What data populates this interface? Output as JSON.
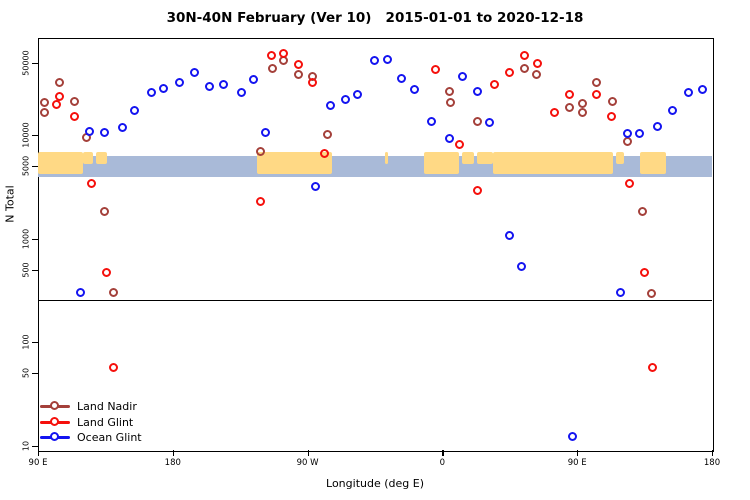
{
  "title": "30N-40N February (Ver 10)   2015-01-01 to 2020-12-18",
  "chart_data": {
    "type": "scatter",
    "title": "30N-40N February (Ver 10)   2015-01-01 to 2020-12-18",
    "xlabel": "Longitude (deg E)",
    "ylabel": "N Total",
    "y_scale": "log10",
    "ylim": [
      10,
      70000
    ],
    "x_axis_ticks": [
      {
        "deg": 90,
        "label": "90 E"
      },
      {
        "deg": 180,
        "label": "180"
      },
      {
        "deg": 270,
        "label": "90 W"
      },
      {
        "deg": 360,
        "label": "0"
      },
      {
        "deg": 450,
        "label": "90 E"
      },
      {
        "deg": 540,
        "label": "180"
      }
    ],
    "y_axis_ticks": [
      {
        "n": 50000,
        "label": "50000"
      },
      {
        "n": 10000,
        "label": "10000"
      },
      {
        "n": 5000,
        "label": "5000"
      },
      {
        "n": 1000,
        "label": "1000"
      },
      {
        "n": 500,
        "label": "500"
      },
      {
        "n": 100,
        "label": "100"
      },
      {
        "n": 50,
        "label": "50"
      },
      {
        "n": 10,
        "label": "10"
      }
    ],
    "ref_line_n": 255,
    "map_strip": {
      "ocean_color": "#A9BAD8",
      "land_color": "#FFD985",
      "land_segments": [
        {
          "from_deg": 90,
          "to_deg": 120,
          "part": "full"
        },
        {
          "from_deg": 120,
          "to_deg": 127,
          "part": "top"
        },
        {
          "from_deg": 129,
          "to_deg": 136,
          "part": "top"
        },
        {
          "from_deg": 236,
          "to_deg": 286,
          "part": "full"
        },
        {
          "from_deg": 322,
          "to_deg": 324,
          "part": "top"
        },
        {
          "from_deg": 348,
          "to_deg": 371,
          "part": "full"
        },
        {
          "from_deg": 373,
          "to_deg": 381,
          "part": "top"
        },
        {
          "from_deg": 383,
          "to_deg": 394,
          "part": "top"
        },
        {
          "from_deg": 394,
          "to_deg": 474,
          "part": "full"
        },
        {
          "from_deg": 476,
          "to_deg": 481,
          "part": "top"
        },
        {
          "from_deg": 492,
          "to_deg": 509,
          "part": "full"
        }
      ]
    },
    "legend": {
      "position": "bottom-left",
      "entries": [
        "Land Nadir",
        "Land Glint",
        "Ocean Glint"
      ]
    },
    "series": [
      {
        "name": "Land Nadir",
        "color": "#A4403A",
        "points": [
          {
            "deg": 95,
            "n": 20400
          },
          {
            "deg": 95,
            "n": 16300
          },
          {
            "deg": 105,
            "n": 31800
          },
          {
            "deg": 115,
            "n": 20800
          },
          {
            "deg": 123,
            "n": 9400
          },
          {
            "deg": 254,
            "n": 51900
          },
          {
            "deg": 247,
            "n": 43400
          },
          {
            "deg": 264,
            "n": 38000
          },
          {
            "deg": 274,
            "n": 36300
          },
          {
            "deg": 239,
            "n": 6850
          },
          {
            "deg": 284,
            "n": 10000
          },
          {
            "deg": 365,
            "n": 26000
          },
          {
            "deg": 366,
            "n": 20400
          },
          {
            "deg": 384,
            "n": 13400
          },
          {
            "deg": 415,
            "n": 43400
          },
          {
            "deg": 423,
            "n": 38000
          },
          {
            "deg": 445,
            "n": 18200
          },
          {
            "deg": 454,
            "n": 19900
          },
          {
            "deg": 454,
            "n": 16300
          },
          {
            "deg": 463,
            "n": 31800
          },
          {
            "deg": 474,
            "n": 20800
          },
          {
            "deg": 484,
            "n": 8550
          },
          {
            "deg": 135,
            "n": 1800
          },
          {
            "deg": 141,
            "n": 297
          },
          {
            "deg": 494,
            "n": 1800
          },
          {
            "deg": 500,
            "n": 291
          }
        ]
      },
      {
        "name": "Land Glint",
        "color": "#F5100C",
        "points": [
          {
            "deg": 103,
            "n": 19500
          },
          {
            "deg": 105,
            "n": 23300
          },
          {
            "deg": 115,
            "n": 14900
          },
          {
            "deg": 246,
            "n": 58000
          },
          {
            "deg": 254,
            "n": 61000
          },
          {
            "deg": 264,
            "n": 47400
          },
          {
            "deg": 274,
            "n": 31800
          },
          {
            "deg": 282,
            "n": 6550
          },
          {
            "deg": 356,
            "n": 42400
          },
          {
            "deg": 395,
            "n": 30400
          },
          {
            "deg": 405,
            "n": 39700
          },
          {
            "deg": 415,
            "n": 58000
          },
          {
            "deg": 424,
            "n": 48500
          },
          {
            "deg": 435,
            "n": 16300
          },
          {
            "deg": 372,
            "n": 8000
          },
          {
            "deg": 445,
            "n": 24300
          },
          {
            "deg": 463,
            "n": 24300
          },
          {
            "deg": 473,
            "n": 14900
          },
          {
            "deg": 126,
            "n": 3360
          },
          {
            "deg": 136,
            "n": 464
          },
          {
            "deg": 239,
            "n": 2250
          },
          {
            "deg": 384,
            "n": 2880
          },
          {
            "deg": 485,
            "n": 3360
          },
          {
            "deg": 495,
            "n": 464
          },
          {
            "deg": 141,
            "n": 56
          },
          {
            "deg": 501,
            "n": 56
          }
        ]
      },
      {
        "name": "Ocean Glint",
        "color": "#1414F0",
        "points": [
          {
            "deg": 125,
            "n": 10700
          },
          {
            "deg": 135,
            "n": 10450
          },
          {
            "deg": 147,
            "n": 11700
          },
          {
            "deg": 155,
            "n": 17100
          },
          {
            "deg": 166,
            "n": 25500
          },
          {
            "deg": 174,
            "n": 27800
          },
          {
            "deg": 185,
            "n": 31800
          },
          {
            "deg": 195,
            "n": 39700
          },
          {
            "deg": 205,
            "n": 29100
          },
          {
            "deg": 214,
            "n": 30400
          },
          {
            "deg": 226,
            "n": 25500
          },
          {
            "deg": 234,
            "n": 34000
          },
          {
            "deg": 242,
            "n": 10450
          },
          {
            "deg": 286,
            "n": 19100
          },
          {
            "deg": 296,
            "n": 21800
          },
          {
            "deg": 304,
            "n": 24300
          },
          {
            "deg": 315,
            "n": 51900
          },
          {
            "deg": 324,
            "n": 53100
          },
          {
            "deg": 333,
            "n": 34800
          },
          {
            "deg": 342,
            "n": 27200
          },
          {
            "deg": 353,
            "n": 13400
          },
          {
            "deg": 374,
            "n": 36300
          },
          {
            "deg": 384,
            "n": 26000
          },
          {
            "deg": 392,
            "n": 13050
          },
          {
            "deg": 365,
            "n": 9150
          },
          {
            "deg": 484,
            "n": 10230
          },
          {
            "deg": 492,
            "n": 10230
          },
          {
            "deg": 504,
            "n": 11900
          },
          {
            "deg": 514,
            "n": 17100
          },
          {
            "deg": 525,
            "n": 25500
          },
          {
            "deg": 534,
            "n": 27200
          },
          {
            "deg": 119,
            "n": 297
          },
          {
            "deg": 276,
            "n": 3150
          },
          {
            "deg": 405,
            "n": 1060
          },
          {
            "deg": 413,
            "n": 530
          },
          {
            "deg": 479,
            "n": 297
          },
          {
            "deg": 447,
            "n": 12
          }
        ]
      }
    ]
  }
}
